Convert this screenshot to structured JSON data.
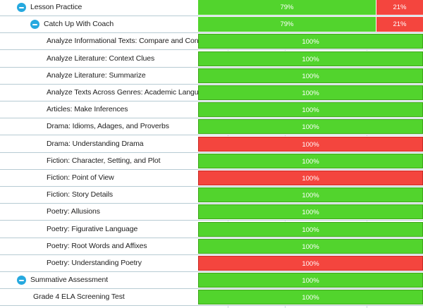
{
  "colors": {
    "pass": "#52d42d",
    "fail": "#f4453e",
    "toggle": "#26a9df",
    "row_border": "#b7cbd3"
  },
  "rows": [
    {
      "label": "Lesson Practice",
      "toggle": "minus-circle-icon",
      "segments": [
        {
          "value": "79%",
          "status": "pass",
          "fraction": 0.79
        },
        {
          "value": "21%",
          "status": "fail",
          "fraction": 0.21
        }
      ]
    },
    {
      "label": "Catch Up With Coach",
      "toggle": "minus-circle-icon",
      "segments": [
        {
          "value": "79%",
          "status": "pass",
          "fraction": 0.79
        },
        {
          "value": "21%",
          "status": "fail",
          "fraction": 0.21
        }
      ]
    },
    {
      "label": "Analyze Informational Texts: Compare and Contrast",
      "segments": [
        {
          "value": "100%",
          "status": "pass",
          "fraction": 1
        }
      ]
    },
    {
      "label": "Analyze Literature: Context Clues",
      "segments": [
        {
          "value": "100%",
          "status": "pass",
          "fraction": 1
        }
      ]
    },
    {
      "label": "Analyze Literature: Summarize",
      "segments": [
        {
          "value": "100%",
          "status": "pass",
          "fraction": 1
        }
      ]
    },
    {
      "label": "Analyze Texts Across Genres: Academic Language",
      "segments": [
        {
          "value": "100%",
          "status": "pass",
          "fraction": 1
        }
      ]
    },
    {
      "label": "Articles: Make Inferences",
      "segments": [
        {
          "value": "100%",
          "status": "pass",
          "fraction": 1
        }
      ]
    },
    {
      "label": "Drama: Idioms, Adages, and Proverbs",
      "segments": [
        {
          "value": "100%",
          "status": "pass",
          "fraction": 1
        }
      ]
    },
    {
      "label": "Drama: Understanding Drama",
      "segments": [
        {
          "value": "100%",
          "status": "fail",
          "fraction": 1
        }
      ]
    },
    {
      "label": "Fiction: Character, Setting, and Plot",
      "segments": [
        {
          "value": "100%",
          "status": "pass",
          "fraction": 1
        }
      ]
    },
    {
      "label": "Fiction: Point of View",
      "segments": [
        {
          "value": "100%",
          "status": "fail",
          "fraction": 1
        }
      ]
    },
    {
      "label": "Fiction: Story Details",
      "segments": [
        {
          "value": "100%",
          "status": "pass",
          "fraction": 1
        }
      ]
    },
    {
      "label": "Poetry: Allusions",
      "segments": [
        {
          "value": "100%",
          "status": "pass",
          "fraction": 1
        }
      ]
    },
    {
      "label": "Poetry: Figurative Language",
      "segments": [
        {
          "value": "100%",
          "status": "pass",
          "fraction": 1
        }
      ]
    },
    {
      "label": "Poetry: Root Words and Affixes",
      "segments": [
        {
          "value": "100%",
          "status": "pass",
          "fraction": 1
        }
      ]
    },
    {
      "label": "Poetry: Understanding Poetry",
      "segments": [
        {
          "value": "100%",
          "status": "fail",
          "fraction": 1
        }
      ]
    },
    {
      "label": "Summative Assessment",
      "toggle": "minus-circle-icon",
      "segments": [
        {
          "value": "100%",
          "status": "pass",
          "fraction": 1
        }
      ]
    },
    {
      "label": "Grade 4 ELA Screening Test",
      "segments": [
        {
          "value": "100%",
          "status": "pass",
          "fraction": 1
        }
      ]
    }
  ]
}
